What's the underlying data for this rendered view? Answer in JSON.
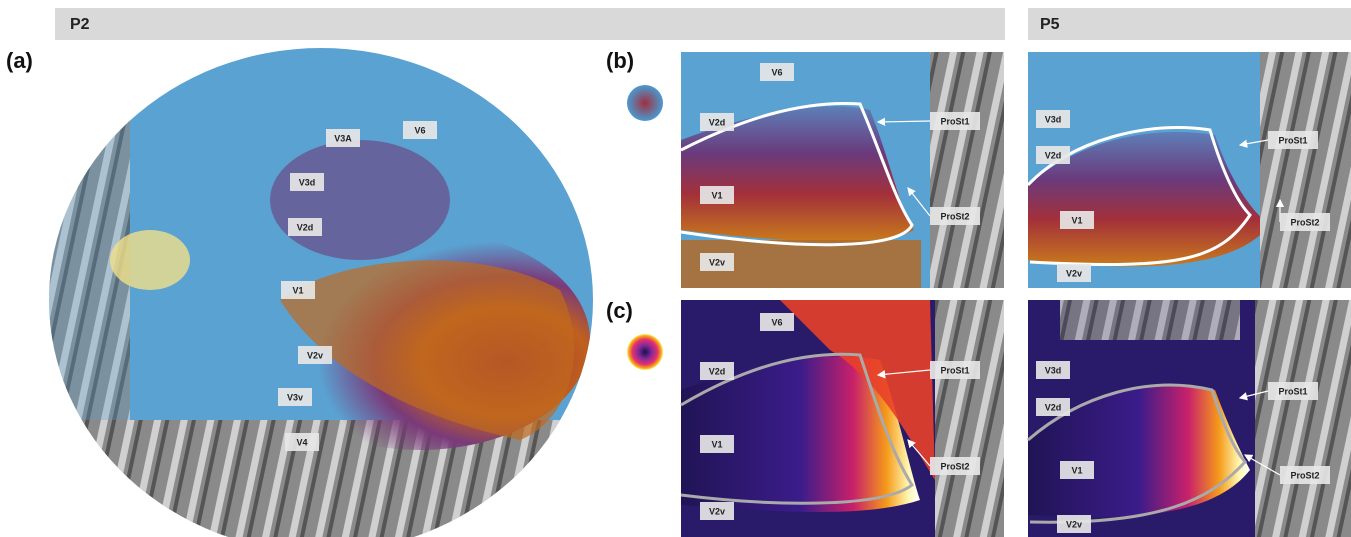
{
  "headers": [
    "P2",
    "P5"
  ],
  "panel_labels": [
    "(a)",
    "(b)",
    "(c)"
  ],
  "panels": {
    "a": {
      "labels": [
        "V3A",
        "V6",
        "V3d",
        "V2d",
        "V1",
        "V2v",
        "V3v",
        "V4"
      ]
    },
    "b_p2": {
      "labels": [
        "V6",
        "V2d",
        "V1",
        "V2v",
        "ProSt1",
        "ProSt2"
      ]
    },
    "b_p5": {
      "labels": [
        "V3d",
        "V2d",
        "V1",
        "V2v",
        "ProSt1",
        "ProSt2"
      ]
    },
    "c_p2": {
      "labels": [
        "V6",
        "V2d",
        "V1",
        "V2v",
        "ProSt1",
        "ProSt2"
      ]
    },
    "c_p5": {
      "labels": [
        "V3d",
        "V2d",
        "V1",
        "V2v",
        "ProSt1",
        "ProSt2"
      ]
    }
  }
}
